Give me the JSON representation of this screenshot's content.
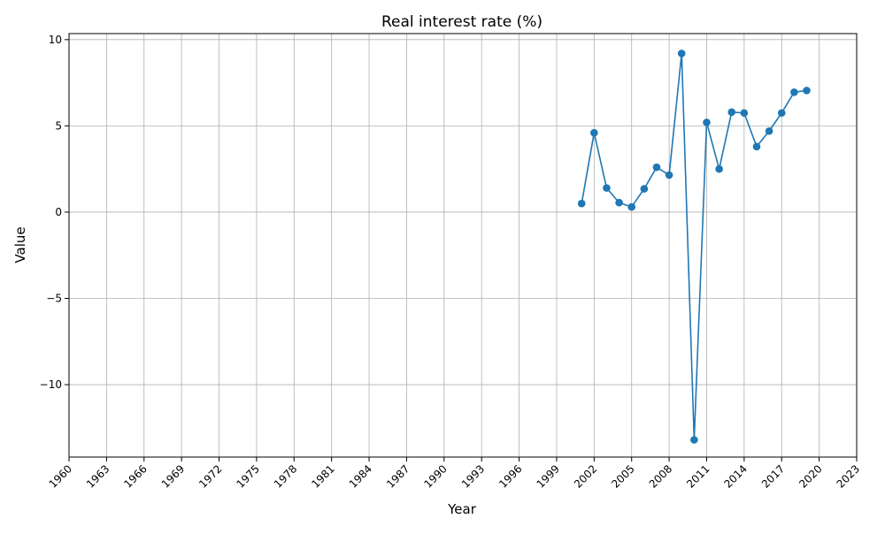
{
  "chart_data": {
    "type": "line",
    "title": "Real interest rate (%)",
    "xlabel": "Year",
    "ylabel": "Value",
    "xlim": [
      1960,
      2023
    ],
    "ylim": [
      -14.2,
      10.35
    ],
    "x_ticks": [
      1960,
      1963,
      1966,
      1969,
      1972,
      1975,
      1978,
      1981,
      1984,
      1987,
      1990,
      1993,
      1996,
      1999,
      2002,
      2005,
      2008,
      2011,
      2014,
      2017,
      2020,
      2023
    ],
    "y_ticks": [
      -10,
      -5,
      0,
      5,
      10
    ],
    "grid": true,
    "series": [
      {
        "color": "#1f77b4",
        "marker": "circle",
        "x": [
          2001,
          2002,
          2003,
          2004,
          2005,
          2006,
          2007,
          2008,
          2009,
          2010,
          2011,
          2012,
          2013,
          2014,
          2015,
          2016,
          2017,
          2018,
          2019
        ],
        "y": [
          0.5,
          4.6,
          1.4,
          0.55,
          0.3,
          1.35,
          2.6,
          2.15,
          9.2,
          -13.2,
          5.2,
          2.5,
          5.8,
          5.75,
          3.8,
          4.7,
          5.75,
          6.95,
          7.05
        ]
      }
    ]
  }
}
